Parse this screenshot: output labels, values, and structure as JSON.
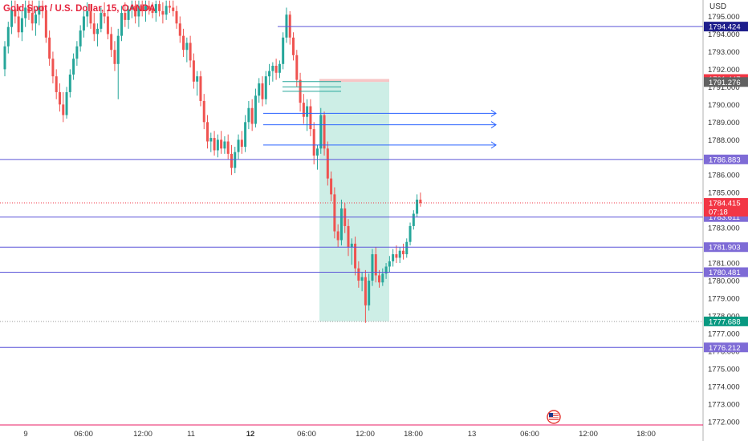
{
  "header": {
    "symbol_title": "Gold Spot / U.S. Dollar, 15, OANDA",
    "currency": "USD"
  },
  "colors": {
    "up": "#26a69a",
    "down": "#ef5350",
    "line": "#5b55d8",
    "current": "#f23645",
    "green_badge": "#089981",
    "dark_badge": "#1e1e8c",
    "gray_badge": "#616161",
    "violet_badge": "#7e6bd6",
    "zone": "#cdeee6",
    "arrow": "#2962ff"
  },
  "price_axis": {
    "labels": [
      "1795.000",
      "1794.000",
      "1793.000",
      "1792.000",
      "1791.000",
      "1790.000",
      "1789.000",
      "1788.000",
      "1787.000",
      "1786.000",
      "1785.000",
      "1784.000",
      "1783.000",
      "1782.000",
      "1781.000",
      "1780.000",
      "1779.000",
      "1778.000",
      "1777.000",
      "1776.000",
      "1775.000",
      "1774.000",
      "1773.000",
      "1772.000"
    ]
  },
  "time_axis": {
    "labels": [
      {
        "text": "9",
        "bold": false
      },
      {
        "text": "06:00",
        "bold": false
      },
      {
        "text": "12:00",
        "bold": false
      },
      {
        "text": "11",
        "bold": false
      },
      {
        "text": "12",
        "bold": true
      },
      {
        "text": "06:00",
        "bold": false
      },
      {
        "text": "12:00",
        "bold": false
      },
      {
        "text": "18:00",
        "bold": false
      },
      {
        "text": "13",
        "bold": false
      },
      {
        "text": "06:00",
        "bold": false
      },
      {
        "text": "12:00",
        "bold": false
      },
      {
        "text": "18:00",
        "bold": false
      }
    ]
  },
  "chart_data": {
    "type": "candlestick",
    "ylim": [
      1771.9,
      1795.75
    ],
    "grid": false,
    "levels": [
      {
        "price": 1794.424,
        "label": "1794.424",
        "style": "dark"
      },
      {
        "price": 1786.883,
        "label": "1786.883",
        "style": "violet"
      },
      {
        "price": 1783.611,
        "label": "1783.611",
        "style": "violet"
      },
      {
        "price": 1781.903,
        "label": "1781.903",
        "style": "violet"
      },
      {
        "price": 1780.481,
        "label": "1780.481",
        "style": "violet"
      },
      {
        "price": 1776.212,
        "label": "1776.212",
        "style": "violet"
      }
    ],
    "price_badges": [
      {
        "price": 1791.447,
        "label": "1791.447",
        "style": "current"
      },
      {
        "price": 1791.276,
        "label": "1791.276",
        "style": "gray"
      },
      {
        "price": 1784.415,
        "label": "1784.415",
        "sublabel": "07:18",
        "style": "current"
      },
      {
        "price": 1777.688,
        "label": "1777.688",
        "style": "green"
      }
    ],
    "short_position": {
      "entry": 1791.276,
      "stop": 1791.447,
      "target": 1777.688
    },
    "arrow_lines": [
      1789.5,
      1788.85,
      1787.7
    ],
    "short_levels": [
      1791.3,
      1791.0,
      1790.75
    ],
    "candles": [
      [
        1792.0,
        1793.6,
        1791.6,
        1793.3
      ],
      [
        1793.3,
        1794.7,
        1792.9,
        1794.4
      ],
      [
        1794.4,
        1795.9,
        1794.0,
        1795.4
      ],
      [
        1795.4,
        1795.9,
        1794.6,
        1795.0
      ],
      [
        1795.0,
        1795.6,
        1793.8,
        1794.1
      ],
      [
        1794.1,
        1795.3,
        1793.6,
        1794.9
      ],
      [
        1794.9,
        1795.9,
        1794.4,
        1795.5
      ],
      [
        1795.5,
        1795.9,
        1794.8,
        1795.2
      ],
      [
        1795.2,
        1795.9,
        1794.2,
        1794.6
      ],
      [
        1794.6,
        1795.4,
        1793.9,
        1795.1
      ],
      [
        1795.1,
        1795.9,
        1794.5,
        1795.6
      ],
      [
        1795.6,
        1795.9,
        1794.9,
        1795.3
      ],
      [
        1795.3,
        1795.6,
        1793.5,
        1793.8
      ],
      [
        1793.8,
        1794.2,
        1792.2,
        1792.6
      ],
      [
        1792.6,
        1793.0,
        1791.2,
        1791.6
      ],
      [
        1791.6,
        1792.0,
        1790.3,
        1790.7
      ],
      [
        1790.7,
        1791.2,
        1789.6,
        1790.0
      ],
      [
        1790.0,
        1790.7,
        1789.0,
        1789.4
      ],
      [
        1789.4,
        1791.0,
        1789.2,
        1790.7
      ],
      [
        1790.7,
        1792.0,
        1790.4,
        1791.7
      ],
      [
        1791.7,
        1792.9,
        1791.4,
        1792.6
      ],
      [
        1792.6,
        1793.6,
        1792.2,
        1793.3
      ],
      [
        1793.3,
        1794.5,
        1793.0,
        1794.2
      ],
      [
        1794.2,
        1795.3,
        1793.8,
        1795.0
      ],
      [
        1795.0,
        1795.8,
        1794.4,
        1795.3
      ],
      [
        1795.3,
        1795.7,
        1794.3,
        1794.6
      ],
      [
        1794.6,
        1795.2,
        1793.6,
        1794.0
      ],
      [
        1794.0,
        1794.6,
        1793.3,
        1794.3
      ],
      [
        1794.3,
        1795.5,
        1794.1,
        1795.2
      ],
      [
        1795.2,
        1795.8,
        1794.6,
        1795.0
      ],
      [
        1795.0,
        1795.4,
        1793.7,
        1794.0
      ],
      [
        1794.0,
        1794.4,
        1792.7,
        1793.1
      ],
      [
        1793.1,
        1793.6,
        1791.9,
        1792.3
      ],
      [
        1792.3,
        1794.3,
        1790.3,
        1793.9
      ],
      [
        1793.9,
        1795.6,
        1793.6,
        1795.2
      ],
      [
        1795.2,
        1795.8,
        1794.4,
        1794.8
      ],
      [
        1794.8,
        1795.6,
        1794.3,
        1795.4
      ],
      [
        1795.4,
        1795.9,
        1794.9,
        1795.6
      ],
      [
        1795.6,
        1795.9,
        1794.6,
        1795.0
      ],
      [
        1795.0,
        1795.9,
        1794.4,
        1795.6
      ],
      [
        1795.6,
        1795.9,
        1795.0,
        1795.3
      ],
      [
        1795.3,
        1795.9,
        1794.7,
        1795.6
      ],
      [
        1795.6,
        1795.9,
        1795.1,
        1795.4
      ],
      [
        1795.4,
        1795.8,
        1794.9,
        1795.2
      ],
      [
        1795.2,
        1795.9,
        1794.7,
        1795.7
      ],
      [
        1795.7,
        1795.9,
        1795.0,
        1795.3
      ],
      [
        1795.3,
        1795.8,
        1794.6,
        1795.1
      ],
      [
        1795.1,
        1795.9,
        1794.8,
        1795.6
      ],
      [
        1795.6,
        1795.9,
        1795.2,
        1795.5
      ],
      [
        1795.5,
        1795.9,
        1795.0,
        1795.3
      ],
      [
        1795.3,
        1795.6,
        1794.3,
        1794.6
      ],
      [
        1794.6,
        1795.0,
        1793.5,
        1793.9
      ],
      [
        1793.9,
        1794.3,
        1792.7,
        1793.1
      ],
      [
        1793.1,
        1793.8,
        1792.4,
        1793.5
      ],
      [
        1793.5,
        1793.9,
        1792.1,
        1792.5
      ],
      [
        1792.5,
        1792.9,
        1790.9,
        1791.3
      ],
      [
        1791.3,
        1791.9,
        1790.5,
        1791.6
      ],
      [
        1791.6,
        1791.9,
        1789.9,
        1790.2
      ],
      [
        1790.2,
        1790.6,
        1788.6,
        1789.0
      ],
      [
        1789.0,
        1789.4,
        1787.5,
        1787.9
      ],
      [
        1787.9,
        1788.4,
        1787.3,
        1788.1
      ],
      [
        1788.1,
        1788.5,
        1787.1,
        1787.4
      ],
      [
        1787.4,
        1788.3,
        1787.0,
        1788.0
      ],
      [
        1788.0,
        1788.5,
        1787.2,
        1787.5
      ],
      [
        1787.5,
        1788.2,
        1787.2,
        1787.9
      ],
      [
        1787.9,
        1788.3,
        1786.9,
        1787.2
      ],
      [
        1787.2,
        1787.7,
        1786.0,
        1786.4
      ],
      [
        1786.4,
        1787.6,
        1786.1,
        1787.3
      ],
      [
        1787.3,
        1788.3,
        1786.9,
        1788.0
      ],
      [
        1788.0,
        1788.5,
        1787.2,
        1787.6
      ],
      [
        1787.6,
        1789.4,
        1787.3,
        1789.0
      ],
      [
        1789.0,
        1790.2,
        1788.6,
        1789.8
      ],
      [
        1789.8,
        1790.3,
        1788.5,
        1788.9
      ],
      [
        1788.9,
        1790.9,
        1788.7,
        1790.5
      ],
      [
        1790.5,
        1791.5,
        1790.1,
        1791.2
      ],
      [
        1791.2,
        1791.6,
        1789.9,
        1790.3
      ],
      [
        1790.3,
        1791.9,
        1790.0,
        1791.6
      ],
      [
        1791.6,
        1792.3,
        1791.1,
        1791.9
      ],
      [
        1791.9,
        1792.4,
        1791.3,
        1792.2
      ],
      [
        1792.2,
        1792.6,
        1791.4,
        1791.8
      ],
      [
        1791.8,
        1792.5,
        1791.5,
        1792.3
      ],
      [
        1792.3,
        1794.1,
        1792.0,
        1793.8
      ],
      [
        1793.8,
        1795.5,
        1793.5,
        1795.1
      ],
      [
        1795.1,
        1795.3,
        1793.4,
        1793.8
      ],
      [
        1793.8,
        1794.1,
        1792.5,
        1792.8
      ],
      [
        1792.8,
        1793.1,
        1791.0,
        1791.4
      ],
      [
        1791.4,
        1791.8,
        1789.6,
        1790.1
      ],
      [
        1790.1,
        1790.6,
        1788.9,
        1789.3
      ],
      [
        1789.3,
        1790.3,
        1788.5,
        1789.9
      ],
      [
        1789.9,
        1790.3,
        1788.2,
        1788.6
      ],
      [
        1788.6,
        1789.0,
        1786.6,
        1787.1
      ],
      [
        1787.1,
        1787.7,
        1786.3,
        1787.5
      ],
      [
        1787.5,
        1789.8,
        1787.2,
        1789.4
      ],
      [
        1789.4,
        1789.6,
        1787.1,
        1787.5
      ],
      [
        1787.5,
        1787.9,
        1785.4,
        1785.8
      ],
      [
        1785.8,
        1786.2,
        1784.5,
        1784.9
      ],
      [
        1784.9,
        1785.3,
        1782.4,
        1782.8
      ],
      [
        1782.8,
        1783.2,
        1781.9,
        1782.3
      ],
      [
        1782.3,
        1784.6,
        1782.0,
        1784.1
      ],
      [
        1784.1,
        1784.4,
        1782.7,
        1783.1
      ],
      [
        1783.1,
        1783.5,
        1781.4,
        1781.9
      ],
      [
        1781.9,
        1782.4,
        1780.9,
        1782.1
      ],
      [
        1782.1,
        1782.5,
        1780.3,
        1780.7
      ],
      [
        1780.7,
        1781.1,
        1779.6,
        1780.0
      ],
      [
        1780.0,
        1780.5,
        1779.4,
        1780.2
      ],
      [
        1780.2,
        1780.6,
        1777.6,
        1778.6
      ],
      [
        1778.6,
        1780.4,
        1778.3,
        1780.0
      ],
      [
        1780.0,
        1781.8,
        1779.7,
        1781.5
      ],
      [
        1781.5,
        1781.9,
        1779.9,
        1780.3
      ],
      [
        1780.3,
        1780.6,
        1779.6,
        1779.9
      ],
      [
        1779.9,
        1780.7,
        1779.7,
        1780.4
      ],
      [
        1780.4,
        1781.0,
        1780.1,
        1780.8
      ],
      [
        1780.8,
        1781.4,
        1780.5,
        1781.1
      ],
      [
        1781.1,
        1781.8,
        1780.8,
        1781.5
      ],
      [
        1781.5,
        1782.0,
        1781.0,
        1781.3
      ],
      [
        1781.3,
        1781.9,
        1781.0,
        1781.7
      ],
      [
        1781.7,
        1782.1,
        1781.2,
        1781.5
      ],
      [
        1781.5,
        1782.4,
        1781.3,
        1782.2
      ],
      [
        1782.2,
        1783.3,
        1782.0,
        1783.1
      ],
      [
        1783.1,
        1784.0,
        1782.9,
        1783.8
      ],
      [
        1783.8,
        1784.9,
        1783.6,
        1784.6
      ],
      [
        1784.6,
        1785.0,
        1784.2,
        1784.415
      ]
    ]
  }
}
